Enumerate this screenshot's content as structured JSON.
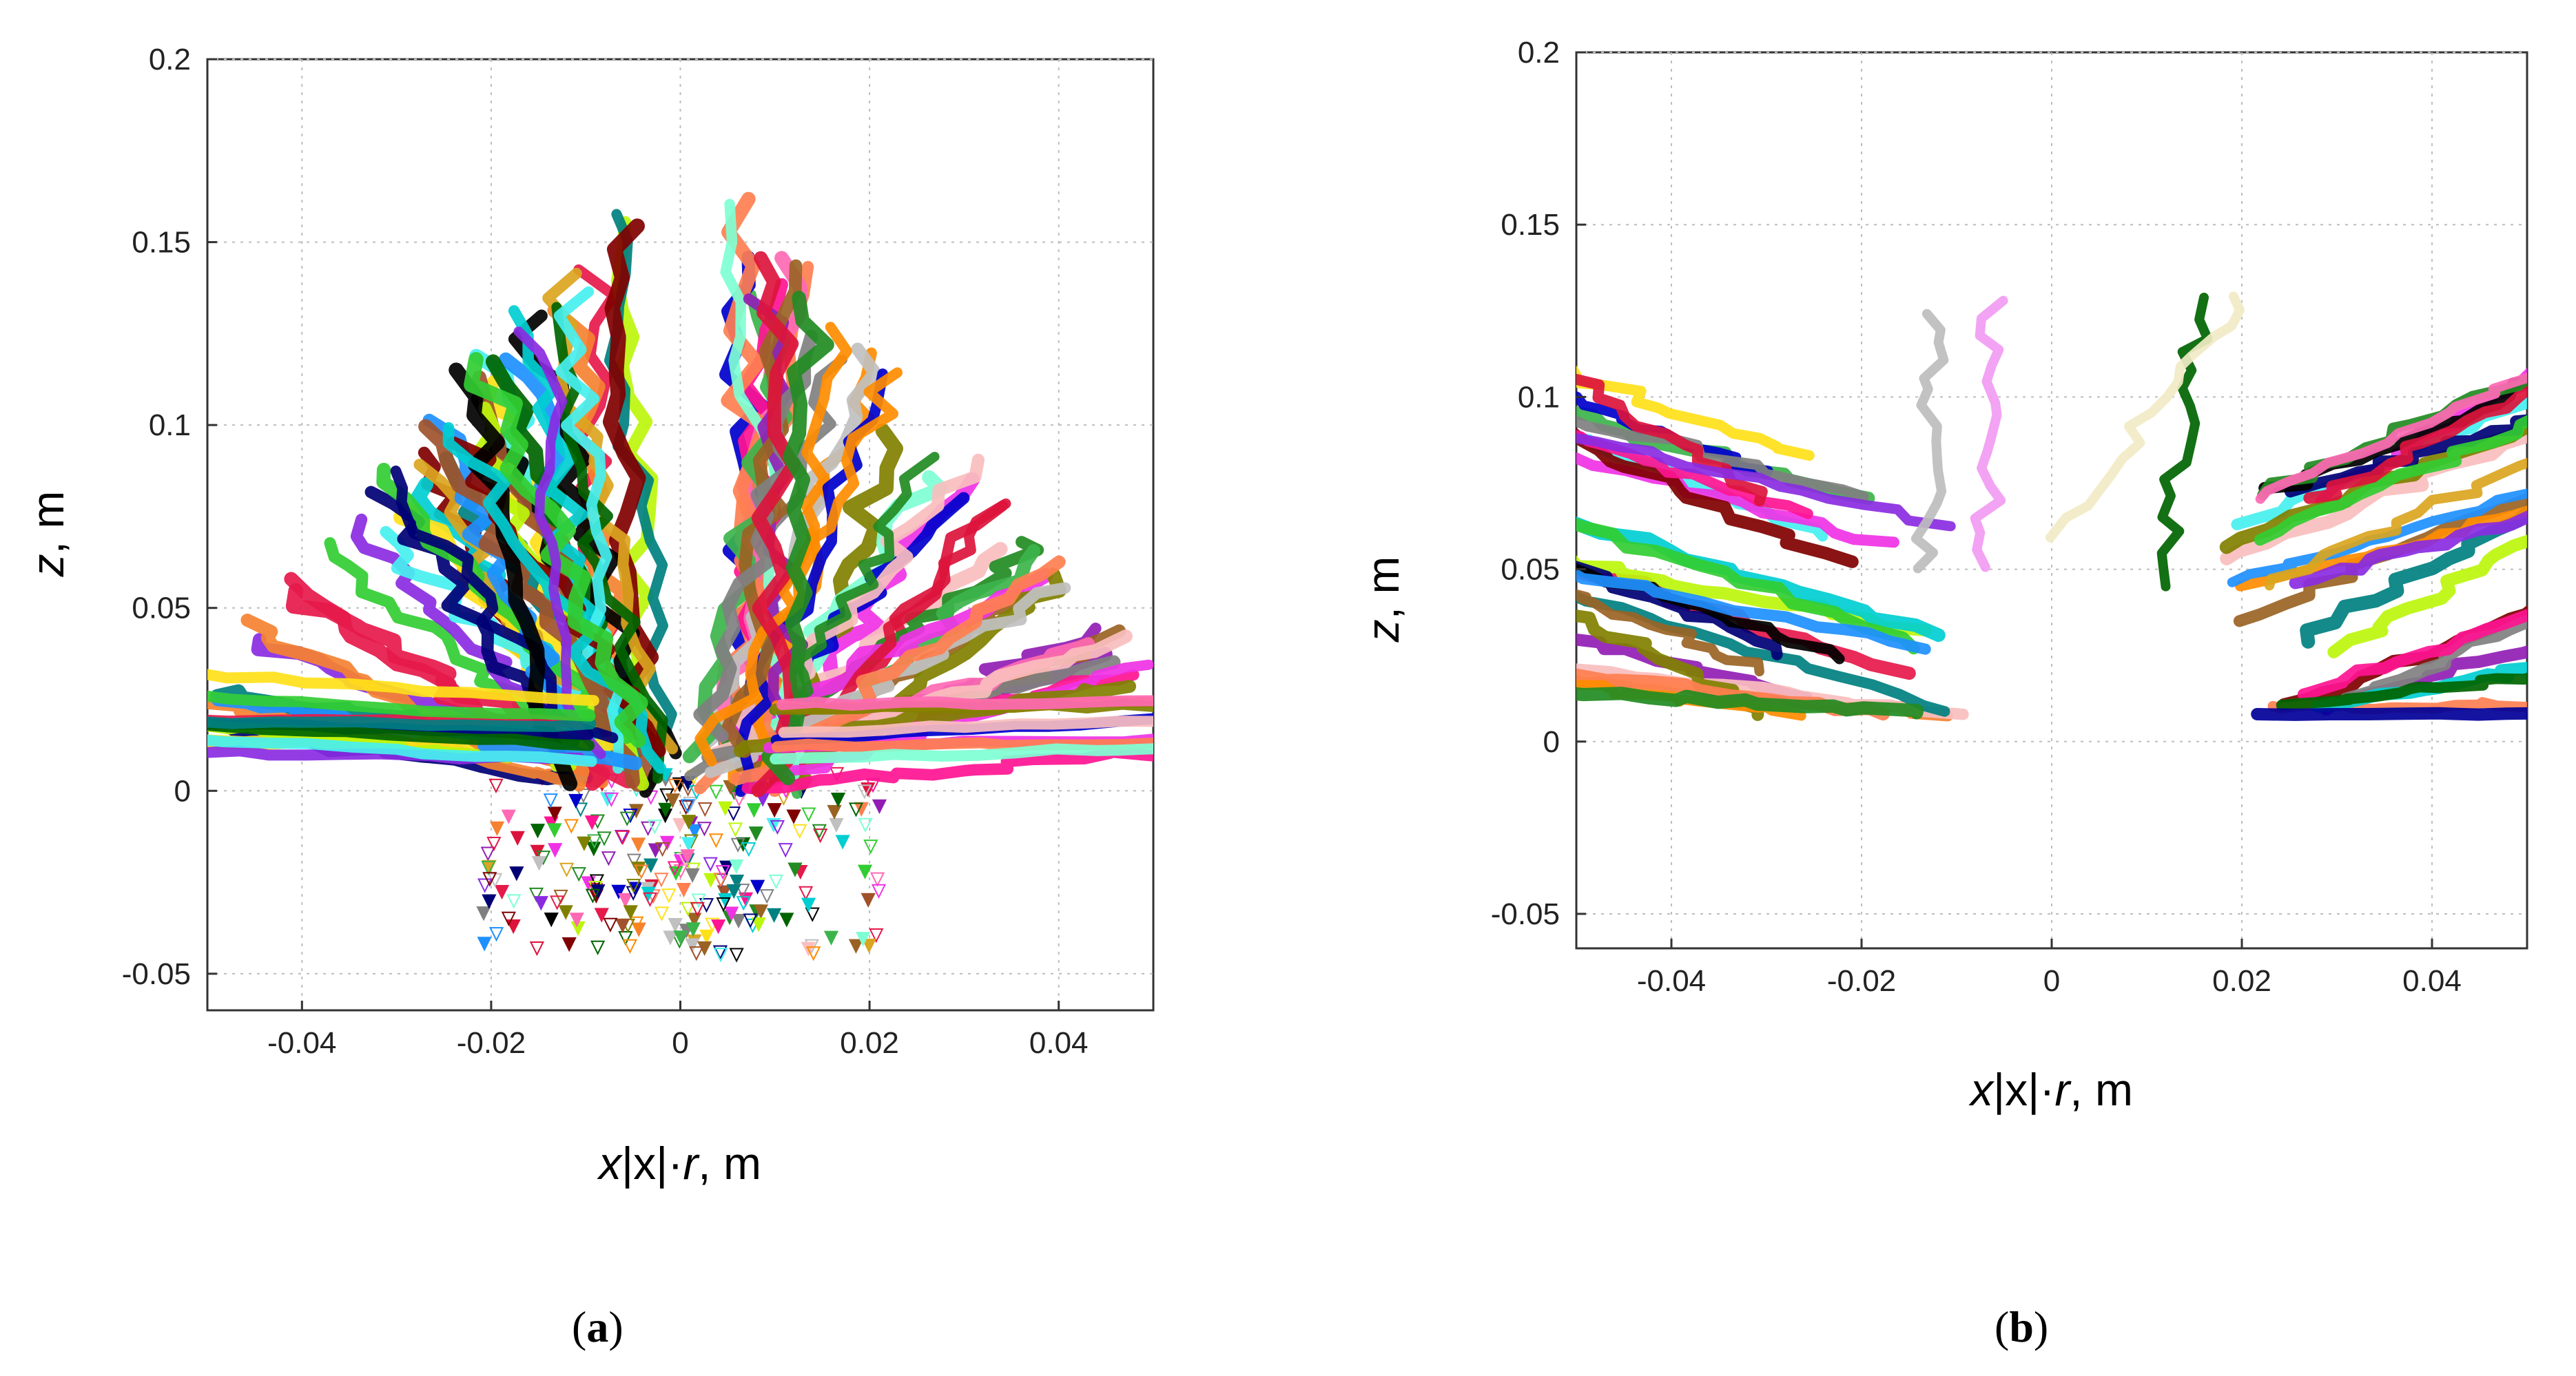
{
  "chart_data": [
    {
      "panel": "a",
      "type": "scatter",
      "caption_open": "(",
      "caption_letter": "a",
      "caption_close": ")",
      "xlabel_var": "x",
      "xlabel_mid": "|x|·",
      "xlabel_r": "r",
      "xlabel_unit": ", m",
      "ylabel_var": "z",
      "ylabel_unit": ", m",
      "xlim": [
        -0.05,
        0.05
      ],
      "ylim": [
        -0.06,
        0.2
      ],
      "xticks": [
        -0.04,
        -0.02,
        0,
        0.02,
        0.04
      ],
      "xtick_labels": [
        "-0.04",
        "-0.02",
        "0",
        "0.02",
        "0.04"
      ],
      "yticks": [
        -0.05,
        0,
        0.05,
        0.1,
        0.15,
        0.2
      ],
      "ytick_labels": [
        "-0.05",
        "0",
        "0.05",
        "0.1",
        "0.15",
        "0.2"
      ],
      "grid": true,
      "trajectory_count": 90,
      "description_series": [
        {
          "x": [
            -0.007,
            -0.009,
            -0.013,
            -0.02,
            -0.029,
            -0.04,
            -0.05
          ],
          "y": [
            0.0,
            0.012,
            0.028,
            0.048,
            0.07,
            0.092,
            0.11
          ]
        },
        {
          "x": [
            -0.003,
            -0.005,
            -0.006,
            -0.007,
            -0.008,
            -0.007
          ],
          "y": [
            0.0,
            0.03,
            0.06,
            0.09,
            0.12,
            0.148
          ]
        },
        {
          "x": [
            0.003,
            0.005,
            0.006,
            0.007,
            0.008,
            0.013
          ],
          "y": [
            0.0,
            0.03,
            0.06,
            0.09,
            0.12,
            0.148
          ]
        },
        {
          "x": [
            0.007,
            0.01,
            0.015,
            0.022,
            0.03,
            0.041,
            0.05
          ],
          "y": [
            0.0,
            0.012,
            0.028,
            0.048,
            0.068,
            0.088,
            0.105
          ]
        },
        {
          "x": [
            0.008,
            0.015,
            0.025,
            0.04,
            0.05
          ],
          "y": [
            0.0,
            0.005,
            0.01,
            0.012,
            0.012
          ]
        }
      ]
    },
    {
      "panel": "b",
      "type": "scatter",
      "caption_open": "(",
      "caption_letter": "b",
      "caption_close": ")",
      "xlabel_var": "x",
      "xlabel_mid": "|x|·",
      "xlabel_r": "r",
      "xlabel_unit": ", m",
      "ylabel_var": "z",
      "ylabel_unit": ", m",
      "xlim": [
        -0.05,
        0.05
      ],
      "ylim": [
        -0.06,
        0.2
      ],
      "xticks": [
        -0.04,
        -0.02,
        0,
        0.02,
        0.04
      ],
      "xtick_labels": [
        "-0.04",
        "-0.02",
        "0",
        "0.02",
        "0.04"
      ],
      "yticks": [
        -0.05,
        0,
        0.05,
        0.1,
        0.15,
        0.2
      ],
      "ytick_labels": [
        "-0.05",
        "0",
        "0.05",
        "0.1",
        "0.15",
        "0.2"
      ],
      "grid": true,
      "trajectory_count": 55,
      "description_series": [
        {
          "x": [
            -0.05,
            -0.042,
            -0.034,
            -0.026,
            -0.018
          ],
          "y": [
            0.11,
            0.098,
            0.082,
            0.068,
            0.055
          ]
        },
        {
          "x": [
            -0.05,
            -0.04,
            -0.03,
            -0.022
          ],
          "y": [
            0.06,
            0.05,
            0.04,
            0.03
          ]
        },
        {
          "x": [
            -0.014,
            -0.012,
            -0.011,
            -0.012,
            -0.01
          ],
          "y": [
            0.125,
            0.11,
            0.095,
            0.075,
            0.05
          ]
        },
        {
          "x": [
            0.01,
            0.012,
            0.013,
            0.015,
            0.016
          ],
          "y": [
            0.045,
            0.07,
            0.09,
            0.11,
            0.125
          ]
        },
        {
          "x": [
            0.022,
            0.03,
            0.038,
            0.046,
            0.05
          ],
          "y": [
            0.05,
            0.075,
            0.095,
            0.11,
            0.115
          ]
        },
        {
          "x": [
            0.022,
            0.034,
            0.046,
            0.05
          ],
          "y": [
            0.008,
            0.008,
            0.008,
            0.008
          ]
        }
      ]
    }
  ]
}
